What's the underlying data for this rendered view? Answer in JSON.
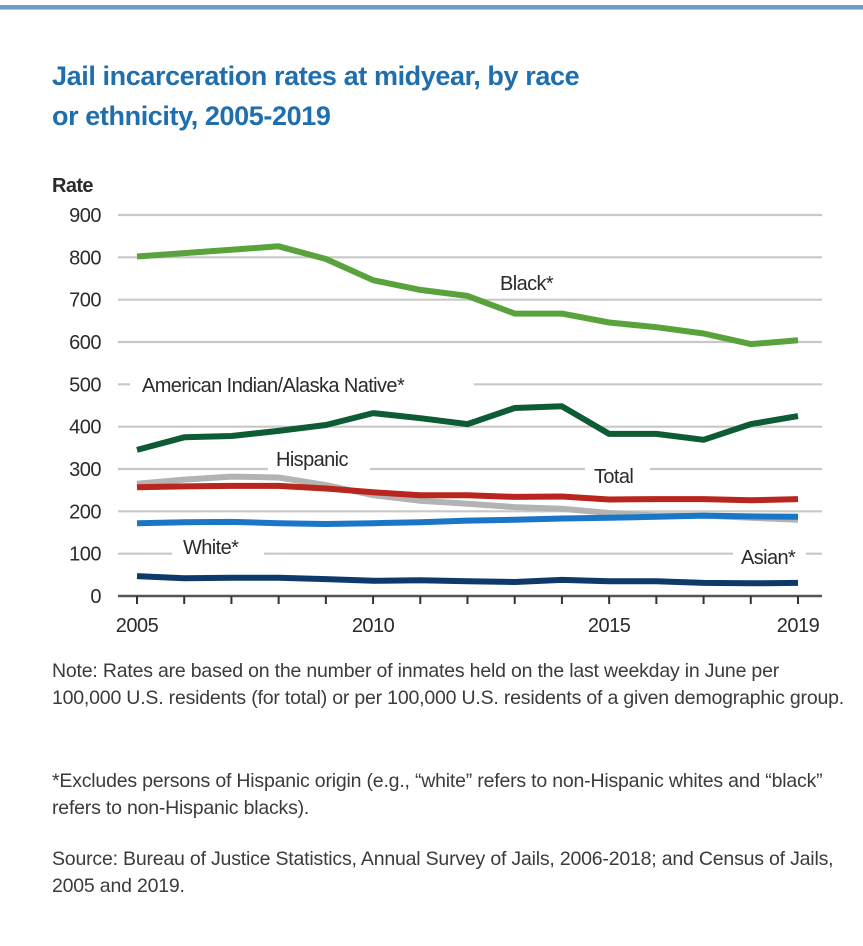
{
  "header": {
    "title_line1": "Jail incarceration rates at midyear, by race",
    "title_line2": "or ethnicity, 2005-2019"
  },
  "colors": {
    "title": "#1f6fae",
    "top_rule": "#6a9ec6",
    "grid": "#c8c8c8",
    "axis": "#555555",
    "text": "#3b3b3b"
  },
  "chart_data": {
    "type": "line",
    "title": "Jail incarceration rates at midyear, by race or ethnicity, 2005-2019",
    "xlabel": "",
    "ylabel": "Rate",
    "x": [
      2005,
      2006,
      2007,
      2008,
      2009,
      2010,
      2011,
      2012,
      2013,
      2014,
      2015,
      2016,
      2017,
      2018,
      2019
    ],
    "x_tick_labels": [
      "2005",
      "2010",
      "2015",
      "2019"
    ],
    "x_tick_label_values": [
      2005,
      2010,
      2015,
      2019
    ],
    "y_ticks": [
      0,
      100,
      200,
      300,
      400,
      500,
      600,
      700,
      800,
      900
    ],
    "xlim": [
      2005,
      2019
    ],
    "ylim": [
      0,
      900
    ],
    "grid": true,
    "legend": "inline labels",
    "series": [
      {
        "name": "Black*",
        "color": "#5aa23c",
        "values": [
          802,
          810,
          818,
          826,
          796,
          746,
          723,
          709,
          667,
          667,
          646,
          635,
          620,
          595,
          604
        ]
      },
      {
        "name": "American Indian/Alaska Native*",
        "color": "#0d5c35",
        "values": [
          345,
          375,
          378,
          390,
          404,
          432,
          420,
          406,
          444,
          448,
          383,
          383,
          369,
          406,
          425
        ]
      },
      {
        "name": "Hispanic",
        "color": "#b3b3b3",
        "values": [
          265,
          275,
          282,
          280,
          262,
          238,
          225,
          218,
          210,
          206,
          196,
          190,
          190,
          185,
          180
        ]
      },
      {
        "name": "Total",
        "color": "#b8261d",
        "values": [
          257,
          259,
          260,
          260,
          254,
          245,
          238,
          238,
          234,
          235,
          228,
          229,
          229,
          226,
          229
        ]
      },
      {
        "name": "White*",
        "color": "#1a77c7",
        "values": [
          172,
          174,
          175,
          172,
          170,
          172,
          174,
          178,
          180,
          183,
          185,
          187,
          190,
          188,
          187
        ]
      },
      {
        "name": "Asian*",
        "color": "#0e3a6b",
        "values": [
          47,
          42,
          43,
          43,
          40,
          36,
          37,
          35,
          33,
          38,
          35,
          35,
          31,
          30,
          31
        ]
      }
    ],
    "annotations": [
      {
        "text": "Black*",
        "series": "Black*"
      },
      {
        "text": "American Indian/Alaska Native*",
        "series": "American Indian/Alaska Native*"
      },
      {
        "text": "Hispanic",
        "series": "Hispanic"
      },
      {
        "text": "Total",
        "series": "Total"
      },
      {
        "text": "White*",
        "series": "White*"
      },
      {
        "text": "Asian*",
        "series": "Asian*"
      }
    ]
  },
  "notes": {
    "note": "Note: Rates are based on the number of inmates held on the last weekday in June per 100,000 U.S. residents (for total) or per 100,000 U.S. residents of a given demographic group.",
    "footnote": "*Excludes persons of Hispanic origin (e.g., “white” refers to non-Hispanic whites and “black” refers to non-Hispanic blacks).",
    "source": "Source: Bureau of Justice Statistics, Annual Survey of Jails, 2006-2018; and Census of Jails, 2005 and 2019."
  }
}
